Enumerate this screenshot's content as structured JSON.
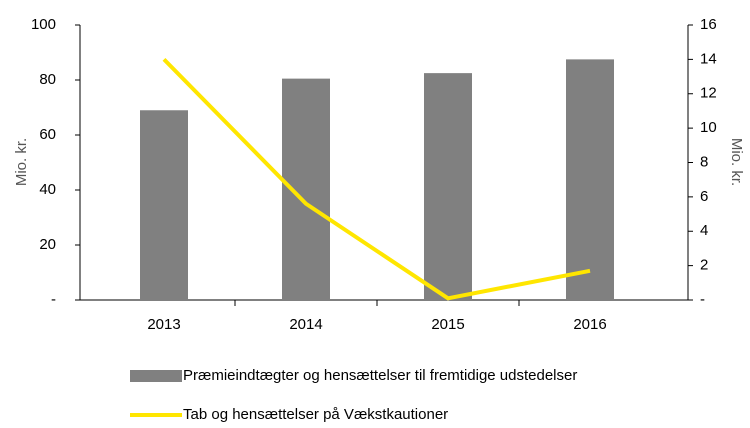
{
  "chart_data": {
    "type": "bar_line",
    "categories": [
      "2013",
      "2014",
      "2015",
      "2016"
    ],
    "series": [
      {
        "name": "Præmieindtægter og hensættelser til fremtidige udstedelser",
        "color": "#808080",
        "type": "bar",
        "values": [
          69,
          80.5,
          82.5,
          87.5
        ]
      },
      {
        "name": "Tab og hensættelser på Vækstkautioner",
        "color": "#ffe600",
        "type": "line",
        "axis": "y2",
        "values": [
          14,
          5.6,
          0.1,
          1.7
        ]
      }
    ],
    "ylabel": "Mio. kr.",
    "y2label": "Mio. kr.",
    "ylim": [
      0,
      100
    ],
    "yticks": [
      {
        "value": 0,
        "label": "-"
      },
      20,
      40,
      60,
      80,
      100
    ],
    "y2lim": [
      0,
      16
    ],
    "y2ticks": [
      {
        "value": 0,
        "label": "-"
      },
      2,
      4,
      6,
      8,
      10,
      12,
      14,
      16
    ],
    "grid": false
  }
}
